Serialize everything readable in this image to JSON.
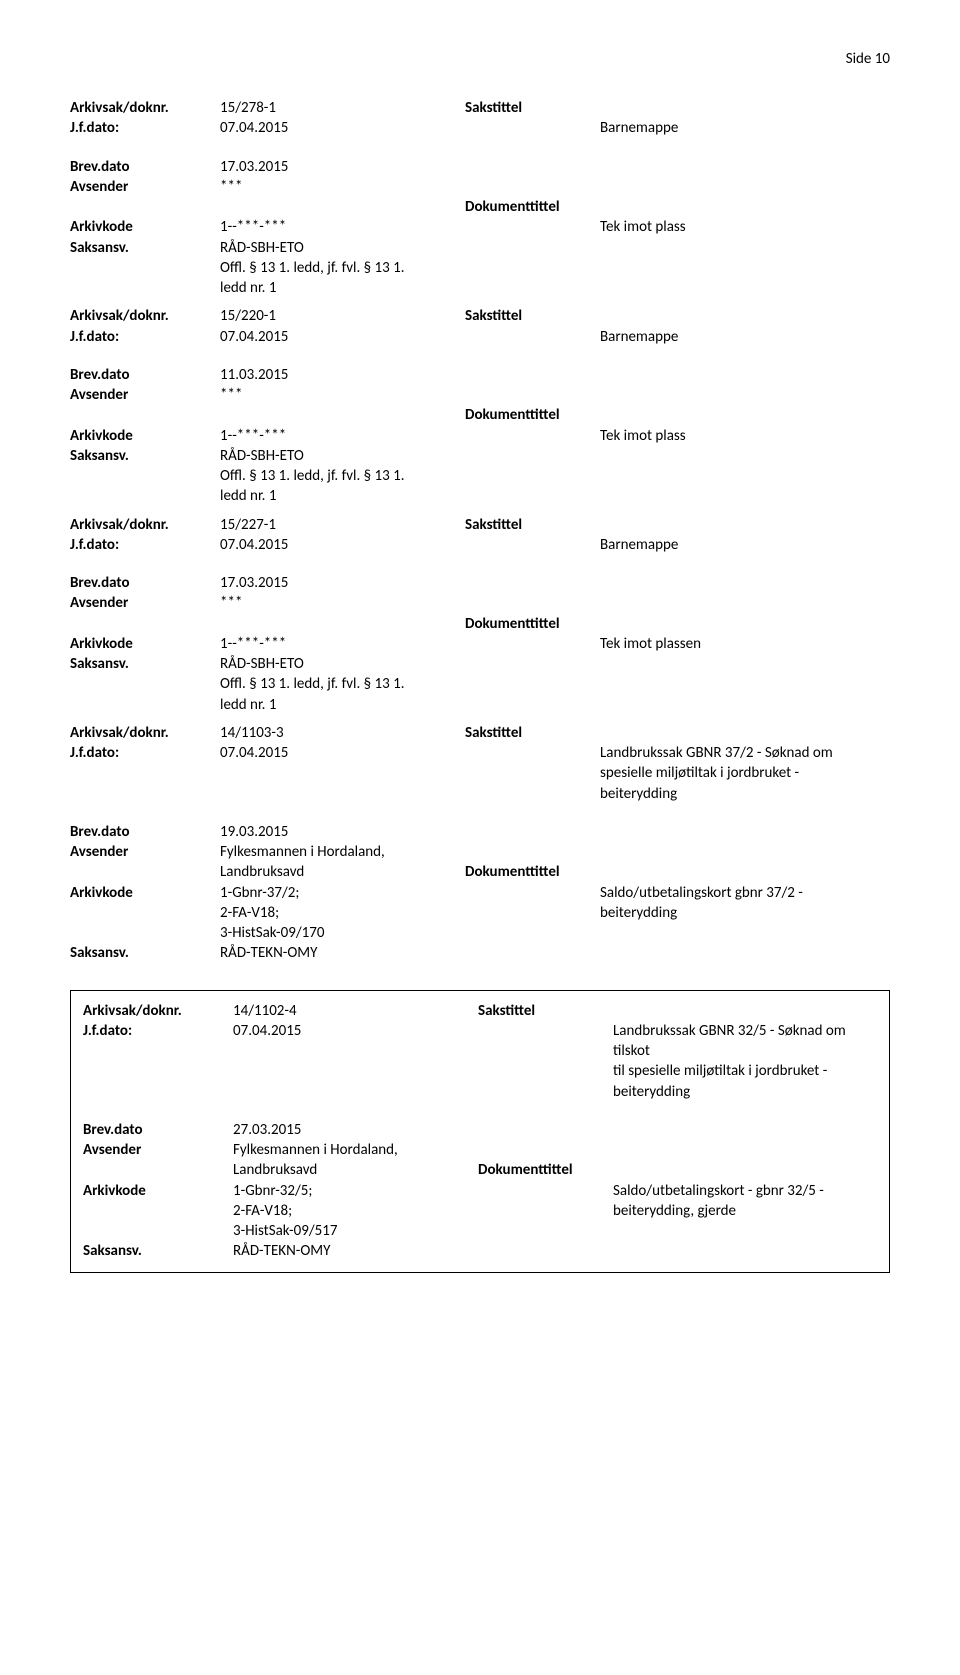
{
  "page_number": "Side 10",
  "labels": {
    "arkivsak": "Arkivsak/doknr.",
    "jfdato": "J.f.dato:",
    "brevdato": "Brev.dato",
    "avsender": "Avsender",
    "arkivkode": "Arkivkode",
    "saksansv": "Saksansv.",
    "sakstittel": "Sakstittel",
    "dokumenttittel": "Dokumenttittel"
  },
  "records": [
    {
      "boxed": false,
      "arkivsak": "15/278-1",
      "sakstittel_line": true,
      "jfdato": "07.04.2015",
      "jftitle": "Barnemappe",
      "brevdato": "17.03.2015",
      "avsender": "***",
      "dokumenttittel_line": true,
      "arkivkode_lines": [
        "1--***-***"
      ],
      "arkivkode_rvalue": "Tek imot plass",
      "saksansv_lines": [
        "RÅD-SBH-ETO",
        "Offl. § 13 1. ledd, jf. fvl. § 13 1.",
        "ledd nr. 1"
      ]
    },
    {
      "boxed": false,
      "arkivsak": "15/220-1",
      "sakstittel_line": true,
      "jfdato": "07.04.2015",
      "jftitle": "Barnemappe",
      "brevdato": "11.03.2015",
      "avsender": "***",
      "dokumenttittel_line": true,
      "arkivkode_lines": [
        "1--***-***"
      ],
      "arkivkode_rvalue": "Tek imot plass",
      "saksansv_lines": [
        "RÅD-SBH-ETO",
        "Offl. § 13 1. ledd, jf. fvl. § 13 1.",
        "ledd nr. 1"
      ]
    },
    {
      "boxed": false,
      "arkivsak": "15/227-1",
      "sakstittel_line": true,
      "jfdato": "07.04.2015",
      "jftitle": "Barnemappe",
      "brevdato": "17.03.2015",
      "avsender": "***",
      "dokumenttittel_line": true,
      "arkivkode_lines": [
        "1--***-***"
      ],
      "arkivkode_rvalue": "Tek imot plassen",
      "saksansv_lines": [
        "RÅD-SBH-ETO",
        "Offl. § 13 1. ledd, jf. fvl. § 13 1.",
        "ledd nr. 1"
      ]
    },
    {
      "boxed": false,
      "arkivsak": "14/1103-3",
      "sakstittel_line": true,
      "jfdato": "07.04.2015",
      "jftitle_lines": [
        "Landbrukssak GBNR 37/2 - Søknad om",
        "spesielle miljøtiltak i jordbruket -",
        "beiterydding"
      ],
      "brevdato": "19.03.2015",
      "avsender_lines": [
        "Fylkesmannen i Hordaland,",
        "Landbruksavd"
      ],
      "dokumenttittel_inline": true,
      "arkivkode_lines": [
        "1-Gbnr-37/2;",
        "2-FA-V18;",
        "3-HistSak-09/170"
      ],
      "arkivkode_rlines": [
        "Saldo/utbetalingskort gbnr 37/2 -",
        "beiterydding"
      ],
      "saksansv_lines": [
        "RÅD-TEKN-OMY"
      ]
    },
    {
      "boxed": true,
      "arkivsak": "14/1102-4",
      "sakstittel_line": true,
      "jfdato": "07.04.2015",
      "jftitle_lines": [
        "Landbrukssak GBNR 32/5 - Søknad om tilskot",
        "til spesielle miljøtiltak i jordbruket -",
        "beiterydding"
      ],
      "brevdato": "27.03.2015",
      "avsender_lines": [
        "Fylkesmannen i Hordaland,",
        "Landbruksavd"
      ],
      "dokumenttittel_inline": true,
      "arkivkode_lines": [
        "1-Gbnr-32/5;",
        "2-FA-V18;",
        "3-HistSak-09/517"
      ],
      "arkivkode_rlines": [
        "Saldo/utbetalingskort - gbnr 32/5 -",
        "beiterydding, gjerde"
      ],
      "saksansv_lines": [
        "RÅD-TEKN-OMY"
      ]
    }
  ]
}
